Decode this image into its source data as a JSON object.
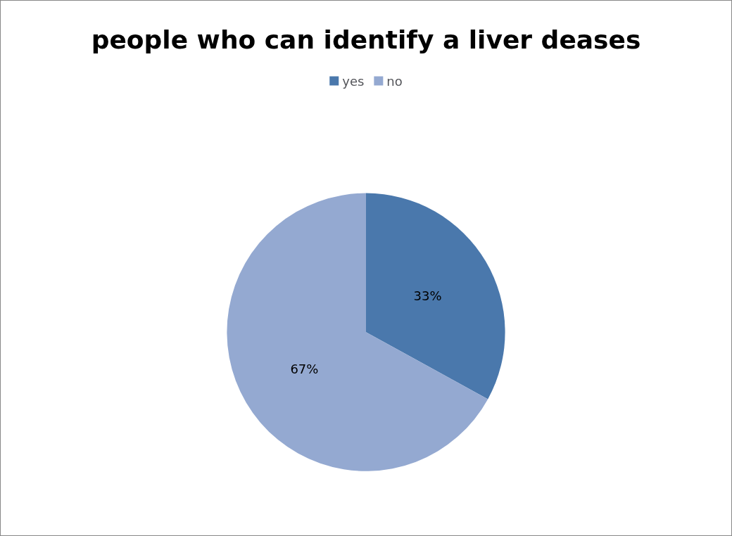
{
  "chart_data": {
    "type": "pie",
    "title": "people who can identify a liver deases",
    "categories": [
      "yes",
      "no"
    ],
    "values": [
      33,
      67
    ],
    "value_labels": [
      "33%",
      "67%"
    ],
    "colors": [
      "#4a78ac",
      "#94a9d1"
    ],
    "legend": "top"
  }
}
